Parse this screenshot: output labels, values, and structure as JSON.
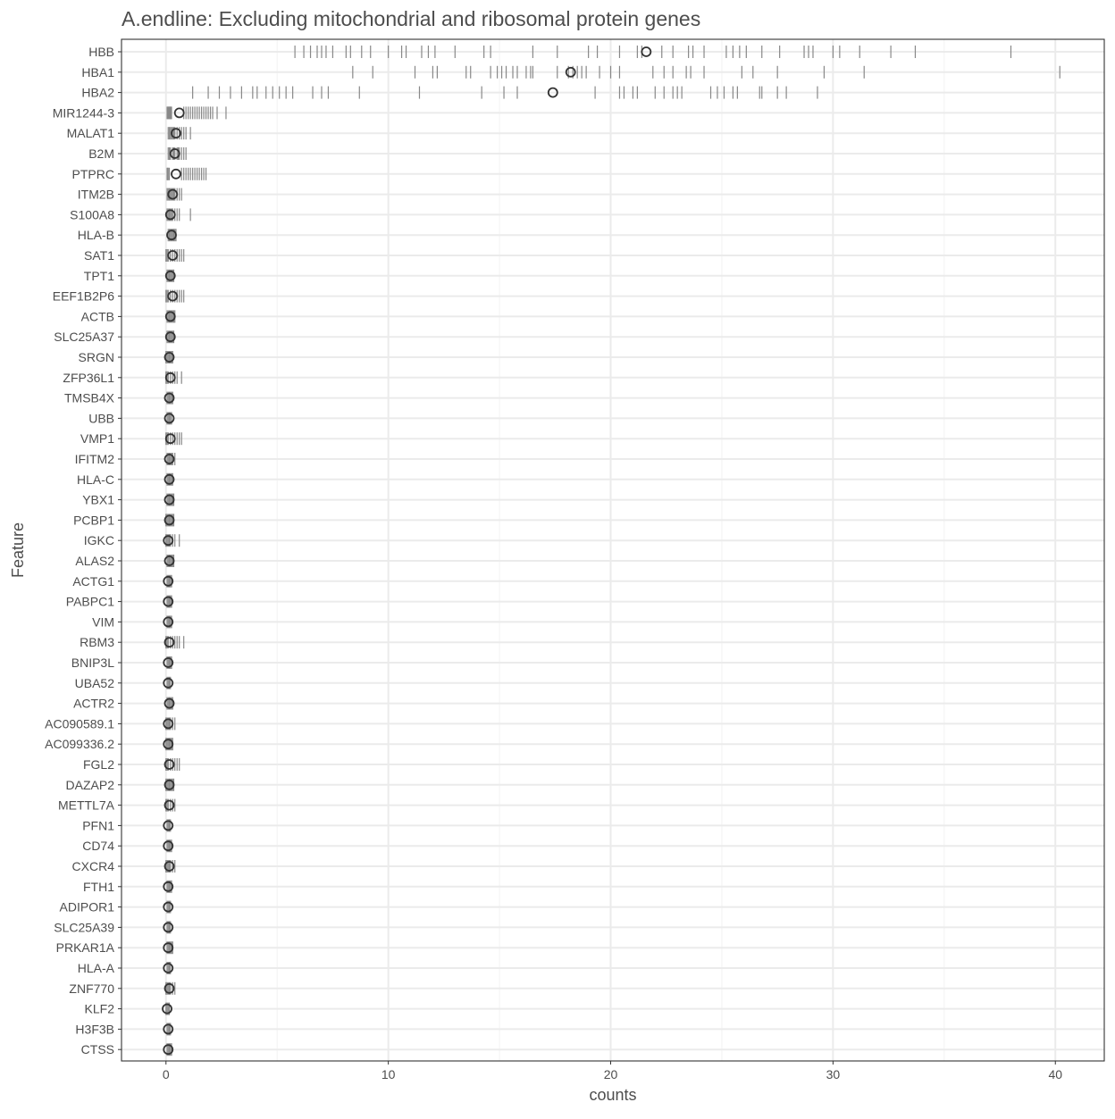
{
  "chart_data": {
    "type": "scatter",
    "title": "A.endline: Excluding mitochondrial and ribosomal protein genes",
    "xlabel": "counts",
    "ylabel": "Feature",
    "xlim": [
      -2,
      42.2
    ],
    "x_ticks": [
      0,
      10,
      20,
      30,
      40
    ],
    "x_tick_labels": [
      "0",
      "10",
      "20",
      "30",
      "40"
    ],
    "grid": true,
    "legend": "none",
    "colors": {
      "tick": "#888888",
      "mean": "#333333",
      "grid": "#ebebeb",
      "panel_border": "#333333",
      "text": "#4d4d4d"
    },
    "categories": [
      "HBB",
      "HBA1",
      "HBA2",
      "MIR1244-3",
      "MALAT1",
      "B2M",
      "PTPRC",
      "ITM2B",
      "S100A8",
      "HLA-B",
      "SAT1",
      "TPT1",
      "EEF1B2P6",
      "ACTB",
      "SLC25A37",
      "SRGN",
      "ZFP36L1",
      "TMSB4X",
      "UBB",
      "VMP1",
      "IFITM2",
      "HLA-C",
      "YBX1",
      "PCBP1",
      "IGKC",
      "ALAS2",
      "ACTG1",
      "PABPC1",
      "VIM",
      "RBM3",
      "BNIP3L",
      "UBA52",
      "ACTR2",
      "AC090589.1",
      "AC099336.2",
      "FGL2",
      "DAZAP2",
      "METTL7A",
      "PFN1",
      "CD74",
      "CXCR4",
      "FTH1",
      "ADIPOR1",
      "SLC25A39",
      "PRKAR1A",
      "HLA-A",
      "ZNF770",
      "KLF2",
      "H3F3B",
      "CTSS"
    ],
    "series": [
      {
        "feature": "HBB",
        "mean": 21.6,
        "x": [
          5.8,
          6.2,
          6.5,
          6.8,
          7.0,
          7.2,
          7.5,
          8.1,
          8.3,
          8.8,
          9.2,
          10.0,
          10.6,
          10.8,
          11.5,
          11.8,
          12.1,
          13.0,
          14.3,
          14.6,
          16.5,
          17.6,
          19.0,
          19.4,
          20.4,
          21.2,
          21.4,
          22.3,
          22.8,
          23.5,
          23.7,
          24.2,
          25.2,
          25.5,
          25.8,
          26.1,
          26.8,
          27.6,
          28.7,
          28.9,
          29.1,
          30.0,
          30.3,
          31.2,
          32.6,
          33.7,
          38.0
        ]
      },
      {
        "feature": "HBA1",
        "mean": 18.2,
        "x": [
          8.4,
          9.3,
          11.2,
          12.0,
          12.2,
          13.5,
          13.7,
          14.6,
          14.9,
          15.1,
          15.3,
          15.6,
          15.8,
          16.2,
          16.4,
          16.5,
          17.6,
          18.1,
          18.3,
          18.5,
          18.7,
          18.9,
          19.5,
          20.0,
          20.4,
          21.9,
          22.4,
          22.8,
          23.4,
          23.6,
          24.2,
          25.9,
          26.4,
          27.5,
          29.6,
          31.4,
          40.2
        ]
      },
      {
        "feature": "HBA2",
        "mean": 17.4,
        "x": [
          1.2,
          1.9,
          2.4,
          2.9,
          3.4,
          3.9,
          4.1,
          4.5,
          4.8,
          5.1,
          5.4,
          5.7,
          6.6,
          7.0,
          7.3,
          8.7,
          11.4,
          14.2,
          15.2,
          15.8,
          19.3,
          20.4,
          20.6,
          21.0,
          21.2,
          22.0,
          22.4,
          22.8,
          23.0,
          23.2,
          24.5,
          24.8,
          25.1,
          25.5,
          25.7,
          26.7,
          26.8,
          27.5,
          27.9,
          29.3
        ]
      },
      {
        "feature": "MIR1244-3",
        "mean": 0.6,
        "x": [
          0.05,
          0.08,
          0.1,
          0.13,
          0.15,
          0.18,
          0.2,
          0.22,
          0.25,
          0.8,
          0.9,
          1.0,
          1.1,
          1.2,
          1.3,
          1.4,
          1.5,
          1.6,
          1.7,
          1.8,
          1.9,
          2.0,
          2.1,
          2.3,
          2.7
        ]
      },
      {
        "feature": "MALAT1",
        "mean": 0.45,
        "x": [
          0.1,
          0.15,
          0.2,
          0.25,
          0.3,
          0.35,
          0.4,
          0.5,
          0.6,
          0.7,
          0.8,
          0.9,
          1.1
        ]
      },
      {
        "feature": "B2M",
        "mean": 0.4,
        "x": [
          0.1,
          0.15,
          0.2,
          0.3,
          0.35,
          0.4,
          0.5,
          0.55,
          0.6,
          0.7,
          0.8,
          0.9
        ]
      },
      {
        "feature": "PTPRC",
        "mean": 0.45,
        "x": [
          0.05,
          0.08,
          0.1,
          0.15,
          0.7,
          0.8,
          0.9,
          1.0,
          1.1,
          1.2,
          1.3,
          1.4,
          1.5,
          1.6,
          1.7,
          1.8
        ]
      },
      {
        "feature": "ITM2B",
        "mean": 0.3,
        "x": [
          0.05,
          0.1,
          0.15,
          0.2,
          0.25,
          0.3,
          0.35,
          0.4,
          0.5,
          0.6,
          0.7
        ]
      },
      {
        "feature": "S100A8",
        "mean": 0.2,
        "x": [
          0.05,
          0.1,
          0.15,
          0.2,
          0.25,
          0.3,
          0.4,
          0.5,
          0.6,
          1.1
        ]
      },
      {
        "feature": "HLA-B",
        "mean": 0.25,
        "x": [
          0.1,
          0.15,
          0.2,
          0.25,
          0.3,
          0.35,
          0.4,
          0.45
        ]
      },
      {
        "feature": "SAT1",
        "mean": 0.3,
        "x": [
          0.0,
          0.05,
          0.1,
          0.2,
          0.3,
          0.4,
          0.5,
          0.6,
          0.7,
          0.8
        ]
      },
      {
        "feature": "TPT1",
        "mean": 0.2,
        "x": [
          0.05,
          0.1,
          0.15,
          0.2,
          0.25,
          0.3,
          0.35
        ]
      },
      {
        "feature": "EEF1B2P6",
        "mean": 0.3,
        "x": [
          0.0,
          0.05,
          0.1,
          0.2,
          0.3,
          0.4,
          0.5,
          0.6,
          0.7,
          0.8
        ]
      },
      {
        "feature": "ACTB",
        "mean": 0.2,
        "x": [
          0.05,
          0.1,
          0.15,
          0.2,
          0.25,
          0.3,
          0.35,
          0.4
        ]
      },
      {
        "feature": "SLC25A37",
        "mean": 0.2,
        "x": [
          0.05,
          0.1,
          0.15,
          0.2,
          0.25,
          0.3,
          0.35
        ]
      },
      {
        "feature": "SRGN",
        "mean": 0.15,
        "x": [
          0.0,
          0.05,
          0.1,
          0.15,
          0.2,
          0.25,
          0.3
        ]
      },
      {
        "feature": "ZFP36L1",
        "mean": 0.2,
        "x": [
          0.0,
          0.05,
          0.1,
          0.2,
          0.3,
          0.4,
          0.5,
          0.7
        ]
      },
      {
        "feature": "TMSB4X",
        "mean": 0.15,
        "x": [
          0.05,
          0.1,
          0.15,
          0.2,
          0.25,
          0.3
        ]
      },
      {
        "feature": "UBB",
        "mean": 0.15,
        "x": [
          0.05,
          0.1,
          0.15,
          0.2,
          0.25
        ]
      },
      {
        "feature": "VMP1",
        "mean": 0.2,
        "x": [
          0.0,
          0.05,
          0.1,
          0.2,
          0.3,
          0.4,
          0.5,
          0.6,
          0.7
        ]
      },
      {
        "feature": "IFITM2",
        "mean": 0.15,
        "x": [
          0.05,
          0.1,
          0.15,
          0.2,
          0.25,
          0.3,
          0.4
        ]
      },
      {
        "feature": "HLA-C",
        "mean": 0.15,
        "x": [
          0.05,
          0.1,
          0.15,
          0.2,
          0.25,
          0.3
        ]
      },
      {
        "feature": "YBX1",
        "mean": 0.15,
        "x": [
          0.05,
          0.1,
          0.15,
          0.2,
          0.25,
          0.3,
          0.35
        ]
      },
      {
        "feature": "PCBP1",
        "mean": 0.15,
        "x": [
          0.0,
          0.05,
          0.1,
          0.15,
          0.2,
          0.25,
          0.3,
          0.35
        ]
      },
      {
        "feature": "IGKC",
        "mean": 0.1,
        "x": [
          0.0,
          0.05,
          0.1,
          0.15,
          0.2,
          0.3,
          0.4,
          0.6
        ]
      },
      {
        "feature": "ALAS2",
        "mean": 0.15,
        "x": [
          0.05,
          0.1,
          0.15,
          0.2,
          0.25,
          0.3,
          0.35
        ]
      },
      {
        "feature": "ACTG1",
        "mean": 0.1,
        "x": [
          0.05,
          0.1,
          0.15,
          0.2,
          0.25
        ]
      },
      {
        "feature": "PABPC1",
        "mean": 0.1,
        "x": [
          0.05,
          0.1,
          0.15,
          0.2,
          0.25
        ]
      },
      {
        "feature": "VIM",
        "mean": 0.1,
        "x": [
          0.05,
          0.1,
          0.15,
          0.2,
          0.25
        ]
      },
      {
        "feature": "RBM3",
        "mean": 0.15,
        "x": [
          0.0,
          0.05,
          0.1,
          0.2,
          0.3,
          0.4,
          0.5,
          0.6,
          0.8
        ]
      },
      {
        "feature": "BNIP3L",
        "mean": 0.1,
        "x": [
          0.05,
          0.1,
          0.15,
          0.2,
          0.25
        ]
      },
      {
        "feature": "UBA52",
        "mean": 0.1,
        "x": [
          0.05,
          0.1,
          0.15,
          0.2
        ]
      },
      {
        "feature": "ACTR2",
        "mean": 0.15,
        "x": [
          0.05,
          0.1,
          0.15,
          0.2,
          0.25,
          0.3
        ]
      },
      {
        "feature": "AC090589.1",
        "mean": 0.1,
        "x": [
          0.0,
          0.05,
          0.1,
          0.15,
          0.2,
          0.3,
          0.4
        ]
      },
      {
        "feature": "AC099336.2",
        "mean": 0.1,
        "x": [
          0.0,
          0.05,
          0.1,
          0.15,
          0.2,
          0.25,
          0.3
        ]
      },
      {
        "feature": "FGL2",
        "mean": 0.15,
        "x": [
          0.0,
          0.05,
          0.1,
          0.2,
          0.3,
          0.4,
          0.5,
          0.6
        ]
      },
      {
        "feature": "DAZAP2",
        "mean": 0.15,
        "x": [
          0.0,
          0.05,
          0.1,
          0.15,
          0.2,
          0.25,
          0.3,
          0.35
        ]
      },
      {
        "feature": "METTL7A",
        "mean": 0.15,
        "x": [
          0.0,
          0.05,
          0.1,
          0.2,
          0.3,
          0.4
        ]
      },
      {
        "feature": "PFN1",
        "mean": 0.1,
        "x": [
          0.05,
          0.1,
          0.15,
          0.2
        ]
      },
      {
        "feature": "CD74",
        "mean": 0.1,
        "x": [
          0.05,
          0.1,
          0.15,
          0.2,
          0.25
        ]
      },
      {
        "feature": "CXCR4",
        "mean": 0.15,
        "x": [
          0.0,
          0.05,
          0.1,
          0.15,
          0.2,
          0.3,
          0.4
        ]
      },
      {
        "feature": "FTH1",
        "mean": 0.1,
        "x": [
          0.05,
          0.1,
          0.15,
          0.2,
          0.25
        ]
      },
      {
        "feature": "ADIPOR1",
        "mean": 0.1,
        "x": [
          0.05,
          0.1,
          0.15,
          0.2
        ]
      },
      {
        "feature": "SLC25A39",
        "mean": 0.1,
        "x": [
          0.05,
          0.1,
          0.15,
          0.2
        ]
      },
      {
        "feature": "PRKAR1A",
        "mean": 0.1,
        "x": [
          0.05,
          0.1,
          0.15,
          0.2,
          0.25,
          0.3
        ]
      },
      {
        "feature": "HLA-A",
        "mean": 0.1,
        "x": [
          0.05,
          0.1,
          0.15,
          0.2
        ]
      },
      {
        "feature": "ZNF770",
        "mean": 0.15,
        "x": [
          0.0,
          0.05,
          0.1,
          0.15,
          0.2,
          0.3,
          0.4
        ]
      },
      {
        "feature": "KLF2",
        "mean": 0.05,
        "x": [
          0.0,
          0.05,
          0.1,
          0.15
        ]
      },
      {
        "feature": "H3F3B",
        "mean": 0.1,
        "x": [
          0.05,
          0.1,
          0.15,
          0.2
        ]
      },
      {
        "feature": "CTSS",
        "mean": 0.1,
        "x": [
          0.05,
          0.1,
          0.15,
          0.2,
          0.25
        ]
      }
    ]
  }
}
